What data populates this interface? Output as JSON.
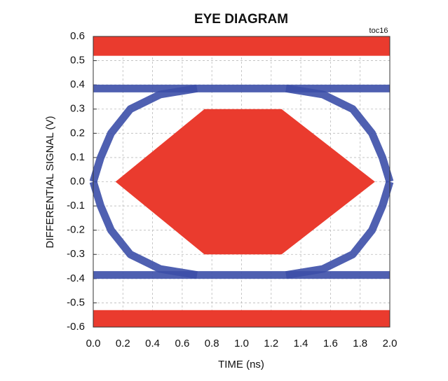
{
  "chart_data": {
    "type": "eye",
    "title": "EYE DIAGRAM",
    "annotation": "toc16",
    "xlabel": "TIME (ns)",
    "ylabel": "DIFFERENTIAL SIGNAL (V)",
    "xlim": [
      0,
      2
    ],
    "xticks": [
      {
        "value": 0,
        "label": "0.0"
      },
      0.2,
      0.4,
      0.6,
      0.8,
      {
        "value": 1,
        "label": "1.0"
      },
      1.2,
      1.4,
      1.6,
      1.8,
      {
        "value": 2,
        "label": "2.0"
      }
    ],
    "ylim": [
      -0.6,
      0.6
    ],
    "yticks": [
      -0.6,
      -0.5,
      -0.4,
      -0.3,
      -0.2,
      -0.1,
      {
        "value": 0,
        "label": "0.0"
      },
      0.1,
      0.2,
      0.3,
      0.4,
      0.5,
      0.6
    ],
    "grid": true,
    "mask": {
      "color": "#ea3b2e",
      "x": [
        0.15,
        0.75,
        1.27,
        1.9,
        1.27,
        0.75
      ],
      "y": [
        0,
        0.3,
        0.3,
        0,
        -0.3,
        -0.3
      ]
    },
    "bands": [
      {
        "color": "#ea3b2e",
        "y": [
          0.52,
          0.6
        ]
      },
      {
        "color": "#ea3b2e",
        "y": [
          -0.6,
          -0.53
        ]
      }
    ],
    "series": [
      {
        "color": "#3c4fa8",
        "x": [
          0,
          2
        ],
        "values": [
          0.385,
          0.385
        ]
      },
      {
        "color": "#3c4fa8",
        "x": [
          0,
          2
        ],
        "values": [
          -0.385,
          -0.385
        ]
      },
      {
        "color": "#3c4fa8",
        "x": [
          0,
          0.05,
          0.12,
          0.25,
          0.45,
          0.7
        ],
        "values": [
          0,
          0.1,
          0.2,
          0.3,
          0.36,
          0.385
        ]
      },
      {
        "color": "#3c4fa8",
        "x": [
          0,
          0.05,
          0.12,
          0.25,
          0.45,
          0.7
        ],
        "values": [
          0,
          -0.1,
          -0.2,
          -0.3,
          -0.36,
          -0.385
        ]
      },
      {
        "color": "#3c4fa8",
        "x": [
          1.3,
          1.55,
          1.75,
          1.88,
          1.95,
          2
        ],
        "values": [
          0.385,
          0.36,
          0.3,
          0.2,
          0.1,
          0
        ]
      },
      {
        "color": "#3c4fa8",
        "x": [
          1.3,
          1.55,
          1.75,
          1.88,
          1.95,
          2
        ],
        "values": [
          -0.385,
          -0.36,
          -0.3,
          -0.2,
          -0.1,
          0
        ]
      }
    ]
  }
}
